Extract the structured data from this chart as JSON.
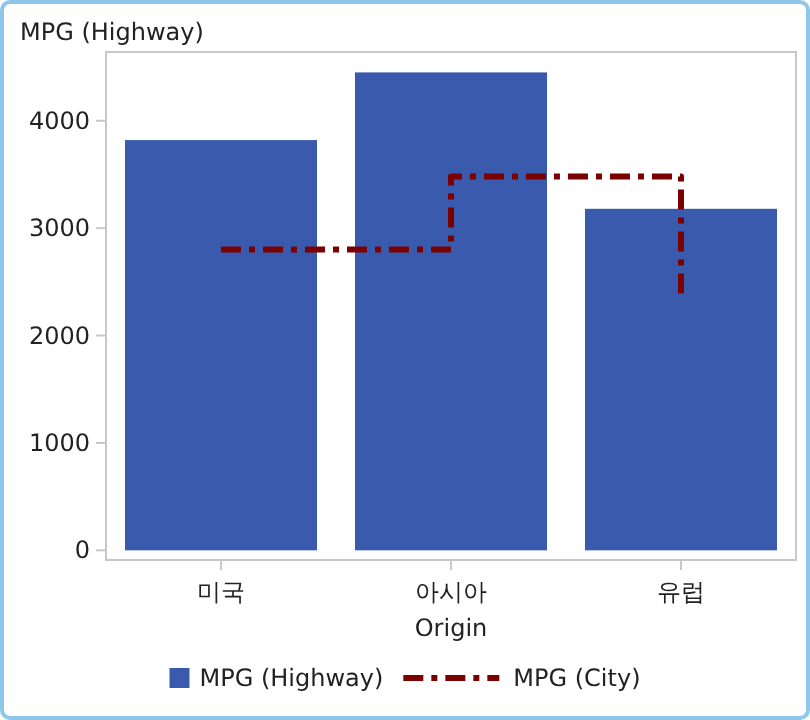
{
  "chart_data": {
    "type": "bar",
    "ylabel": "MPG (Highway)",
    "xlabel": "Origin",
    "categories": [
      "미국",
      "아시아",
      "유럽"
    ],
    "series": [
      {
        "name": "MPG (Highway)",
        "color": "#3a5bad",
        "values": [
          3820,
          4450,
          3180
        ]
      },
      {
        "name": "MPG (City)",
        "type": "step",
        "color": "#7b0000",
        "line_style": "dashdot",
        "values": [
          2800,
          3480,
          2370
        ]
      }
    ],
    "ylim": [
      -90,
      4640
    ],
    "yticks": [
      0,
      1000,
      2000,
      3000,
      4000
    ],
    "grid": false,
    "legend": "bottom"
  }
}
